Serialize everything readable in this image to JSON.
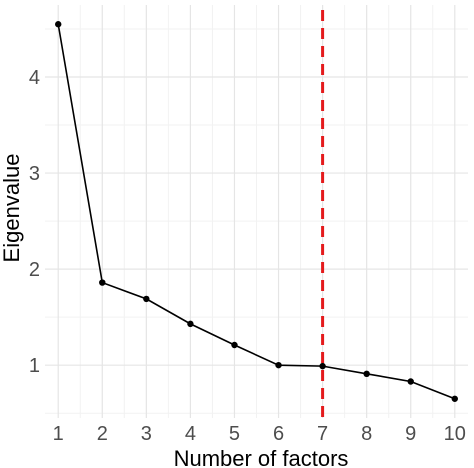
{
  "chart_data": {
    "type": "line",
    "x": [
      1,
      2,
      3,
      4,
      5,
      6,
      7,
      8,
      9,
      10
    ],
    "series": [
      {
        "values": [
          4.55,
          1.86,
          1.69,
          1.43,
          1.21,
          1.0,
          0.99,
          0.91,
          0.83,
          0.65
        ]
      }
    ],
    "xlabel": "Number of factors",
    "ylabel": "Eigenvalue",
    "xticks": [
      "1",
      "2",
      "3",
      "4",
      "5",
      "6",
      "7",
      "8",
      "9",
      "10"
    ],
    "yticks": [
      "1",
      "2",
      "3",
      "4"
    ],
    "xlim": [
      0.7,
      10.3
    ],
    "ylim": [
      0.45,
      4.75
    ],
    "reference_line": {
      "x": 7,
      "style": "dashed",
      "color": "#e41a1c"
    },
    "grid": true,
    "line_color": "#000000"
  }
}
